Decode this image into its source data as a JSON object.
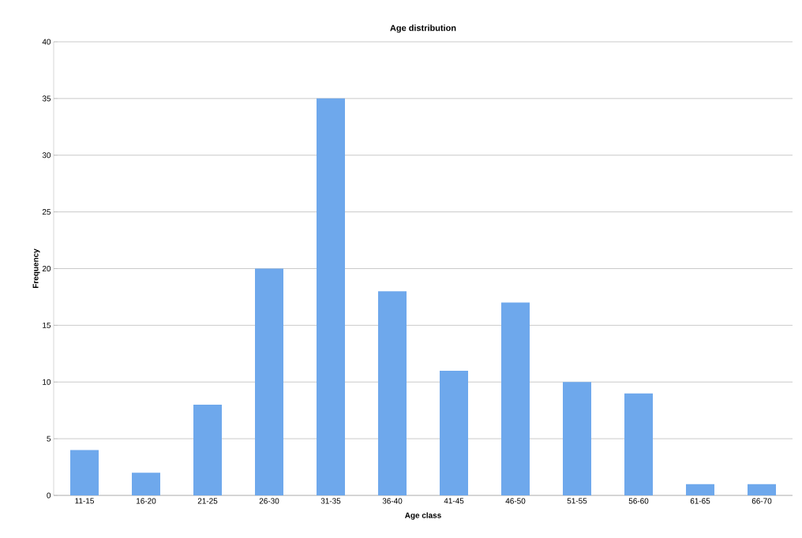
{
  "chart_data": {
    "type": "bar",
    "title": "Age distribution",
    "xlabel": "Age class",
    "ylabel": "Frequency",
    "categories": [
      "11-15",
      "16-20",
      "21-25",
      "26-30",
      "31-35",
      "36-40",
      "41-45",
      "46-50",
      "51-55",
      "56-60",
      "61-65",
      "66-70"
    ],
    "values": [
      4,
      2,
      8,
      20,
      35,
      18,
      11,
      17,
      10,
      9,
      1,
      1
    ],
    "color": "#6ea8ec",
    "ylim": [
      0,
      40
    ],
    "yticks": [
      0,
      5,
      10,
      15,
      20,
      25,
      30,
      35,
      40
    ],
    "grid": "y"
  }
}
